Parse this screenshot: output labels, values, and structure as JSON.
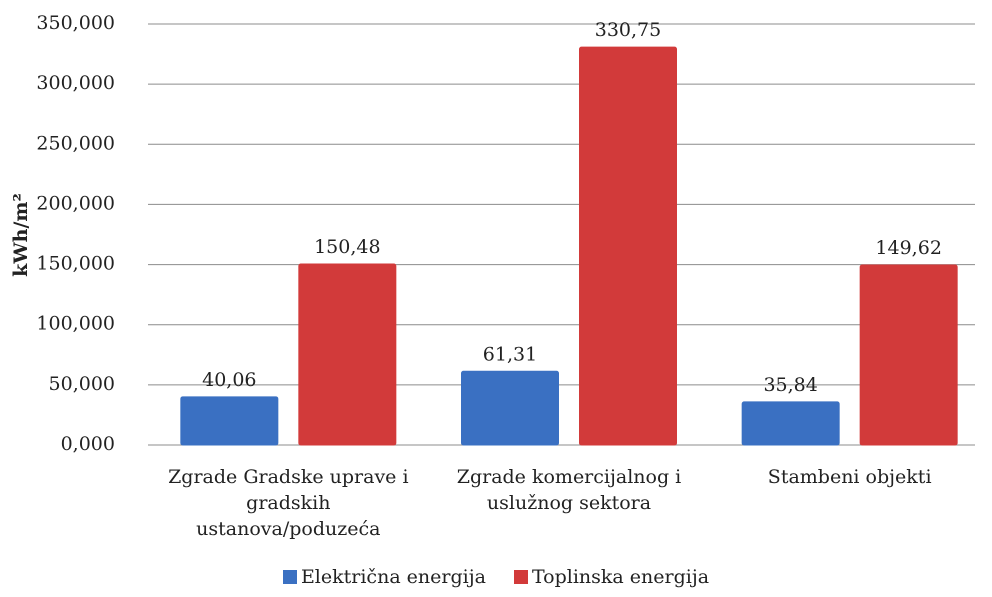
{
  "chart_data": {
    "type": "bar",
    "y_label": "kWh/m²",
    "categories": [
      "Zgrade Gradske uprave i gradskih ustanova/poduzeća",
      "Zgrade komercijalnog i uslužnog sektora",
      "Stambeni objekti"
    ],
    "series": [
      {
        "name": "Električna energija",
        "color": "#3a70c2",
        "values": [
          40.06,
          61.31,
          35.84
        ],
        "value_labels": [
          "40,06",
          "61,31",
          "35,84"
        ]
      },
      {
        "name": "Toplinska energija",
        "color": "#d23a3a",
        "values": [
          150.48,
          330.75,
          149.62
        ],
        "value_labels": [
          "150,48",
          "330,75",
          "149,62"
        ]
      }
    ],
    "ylim": [
      0,
      350
    ],
    "yticks": [
      {
        "value": 0,
        "label": "0,000"
      },
      {
        "value": 50,
        "label": "50,000"
      },
      {
        "value": 100,
        "label": "100,000"
      },
      {
        "value": 150,
        "label": "150,000"
      },
      {
        "value": 200,
        "label": "200,000"
      },
      {
        "value": 250,
        "label": "250,000"
      },
      {
        "value": 300,
        "label": "300,000"
      },
      {
        "value": 350,
        "label": "350,000"
      }
    ],
    "grid": true,
    "legend": "bottom"
  }
}
